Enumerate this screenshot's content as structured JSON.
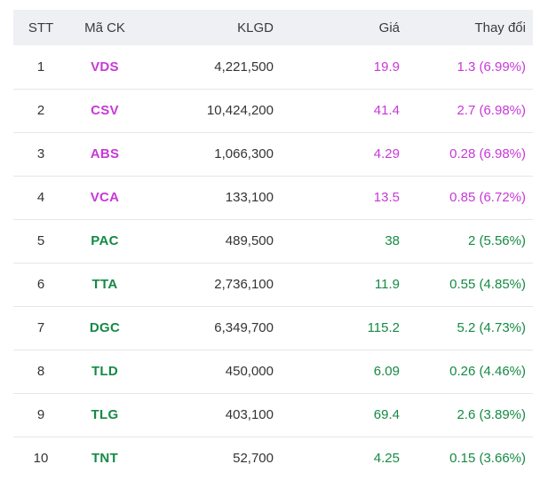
{
  "headers": {
    "stt": "STT",
    "ma_ck": "Mã CK",
    "klgd": "KLGD",
    "gia": "Giá",
    "thay_doi": "Thay đổi"
  },
  "colors": {
    "ceiling": "#c838d8",
    "up": "#158a43",
    "text": "#333333",
    "header_bg": "#eef0f4"
  },
  "rows": [
    {
      "stt": "1",
      "ma_ck": "VDS",
      "klgd": "4,221,500",
      "gia": "19.9",
      "thay_doi": "1.3 (6.99%)",
      "status": "ceiling"
    },
    {
      "stt": "2",
      "ma_ck": "CSV",
      "klgd": "10,424,200",
      "gia": "41.4",
      "thay_doi": "2.7 (6.98%)",
      "status": "ceiling"
    },
    {
      "stt": "3",
      "ma_ck": "ABS",
      "klgd": "1,066,300",
      "gia": "4.29",
      "thay_doi": "0.28 (6.98%)",
      "status": "ceiling"
    },
    {
      "stt": "4",
      "ma_ck": "VCA",
      "klgd": "133,100",
      "gia": "13.5",
      "thay_doi": "0.85 (6.72%)",
      "status": "ceiling"
    },
    {
      "stt": "5",
      "ma_ck": "PAC",
      "klgd": "489,500",
      "gia": "38",
      "thay_doi": "2 (5.56%)",
      "status": "up"
    },
    {
      "stt": "6",
      "ma_ck": "TTA",
      "klgd": "2,736,100",
      "gia": "11.9",
      "thay_doi": "0.55 (4.85%)",
      "status": "up"
    },
    {
      "stt": "7",
      "ma_ck": "DGC",
      "klgd": "6,349,700",
      "gia": "115.2",
      "thay_doi": "5.2 (4.73%)",
      "status": "up"
    },
    {
      "stt": "8",
      "ma_ck": "TLD",
      "klgd": "450,000",
      "gia": "6.09",
      "thay_doi": "0.26 (4.46%)",
      "status": "up"
    },
    {
      "stt": "9",
      "ma_ck": "TLG",
      "klgd": "403,100",
      "gia": "69.4",
      "thay_doi": "2.6 (3.89%)",
      "status": "up"
    },
    {
      "stt": "10",
      "ma_ck": "TNT",
      "klgd": "52,700",
      "gia": "4.25",
      "thay_doi": "0.15 (3.66%)",
      "status": "up"
    }
  ]
}
